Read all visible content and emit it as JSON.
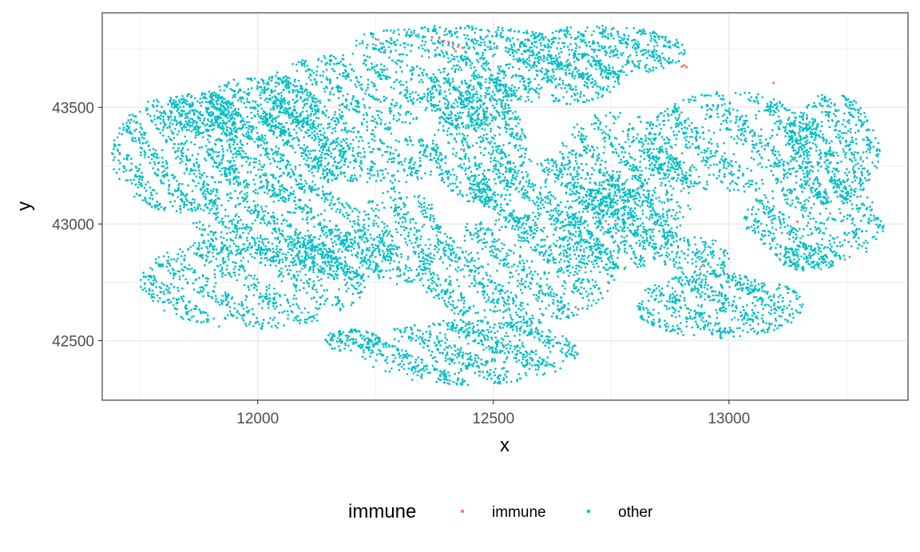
{
  "chart_data": {
    "type": "scatter",
    "title": "",
    "xlabel": "x",
    "ylabel": "y",
    "xlim": [
      11670,
      13380
    ],
    "ylim": [
      42245,
      43905
    ],
    "x_ticks": [
      12000,
      12500,
      13000
    ],
    "x_tick_labels": [
      "12000",
      "12500",
      "13000"
    ],
    "y_ticks": [
      42500,
      43000,
      43500
    ],
    "y_tick_labels": [
      "42500",
      "43000",
      "43500"
    ],
    "grid": true,
    "legend": {
      "title": "immune",
      "position": "bottom"
    },
    "series": [
      {
        "name": "immune",
        "color": "#F8766D",
        "points": [
          [
            12255,
            43790
          ],
          [
            12370,
            43800
          ],
          [
            12385,
            43795
          ],
          [
            12395,
            43785
          ],
          [
            12405,
            43780
          ],
          [
            12415,
            43770
          ],
          [
            12425,
            43760
          ],
          [
            12435,
            43755
          ],
          [
            12420,
            43740
          ],
          [
            12900,
            43675
          ],
          [
            12905,
            43680
          ],
          [
            12910,
            43672
          ],
          [
            13095,
            43605
          ],
          [
            13145,
            43010
          ],
          [
            12300,
            42810
          ],
          [
            12945,
            42825
          ],
          [
            12680,
            42635
          ]
        ]
      },
      {
        "name": "other",
        "color": "#00BFC4",
        "regions": [
          [
            11830,
            43300,
            140,
            250,
            700
          ],
          [
            12010,
            43500,
            120,
            140,
            420
          ],
          [
            11880,
            43480,
            80,
            90,
            220
          ],
          [
            12200,
            43560,
            190,
            170,
            600
          ],
          [
            12420,
            43780,
            220,
            70,
            330
          ],
          [
            12450,
            43560,
            90,
            160,
            380
          ],
          [
            12720,
            43740,
            190,
            110,
            520
          ],
          [
            12630,
            43620,
            140,
            110,
            360
          ],
          [
            12470,
            43330,
            100,
            240,
            520
          ],
          [
            12260,
            43280,
            140,
            110,
            300
          ],
          [
            12050,
            43300,
            150,
            180,
            560
          ],
          [
            12050,
            43000,
            190,
            170,
            640
          ],
          [
            11990,
            42750,
            240,
            200,
            800
          ],
          [
            12180,
            42870,
            110,
            110,
            300
          ],
          [
            12450,
            42450,
            230,
            140,
            760
          ],
          [
            12550,
            42800,
            210,
            240,
            920
          ],
          [
            12610,
            43120,
            170,
            160,
            500
          ],
          [
            12760,
            43260,
            130,
            220,
            420
          ],
          [
            12760,
            42980,
            130,
            180,
            460
          ],
          [
            13000,
            43350,
            180,
            220,
            700
          ],
          [
            13220,
            43320,
            100,
            240,
            560
          ],
          [
            13180,
            43000,
            150,
            190,
            460
          ],
          [
            12980,
            42650,
            180,
            140,
            620
          ],
          [
            13170,
            42860,
            70,
            60,
            120
          ],
          [
            12930,
            42850,
            70,
            100,
            150
          ],
          [
            12830,
            43110,
            90,
            220,
            280
          ],
          [
            12300,
            42950,
            90,
            210,
            340
          ],
          [
            12200,
            42500,
            60,
            50,
            120
          ]
        ]
      }
    ]
  }
}
